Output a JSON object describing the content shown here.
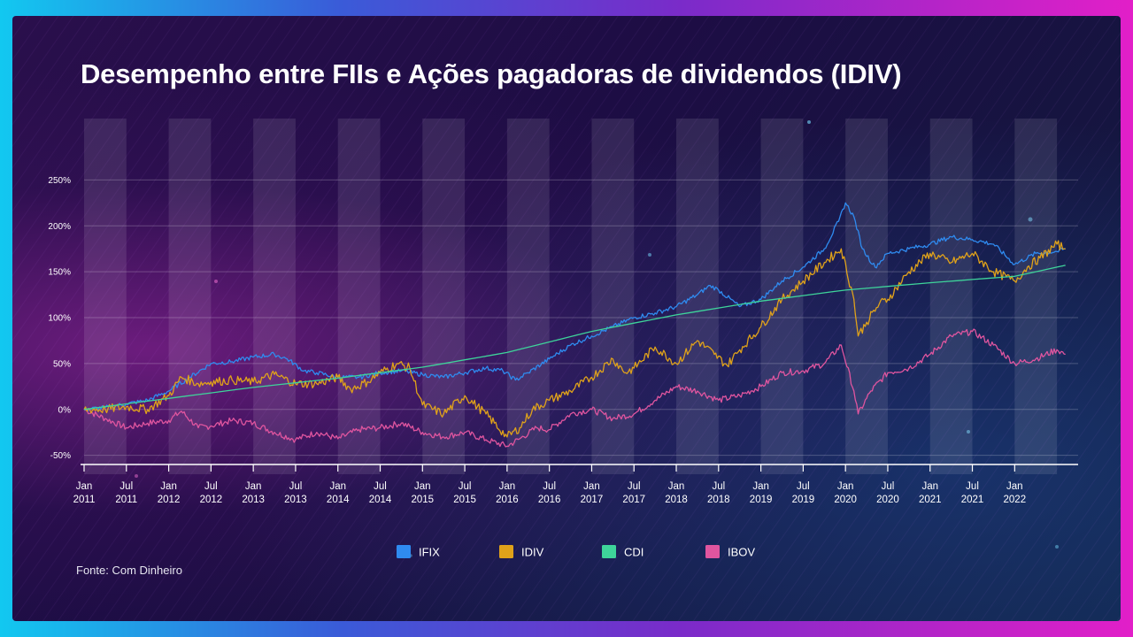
{
  "title": "Desempenho entre FIIs e Ações pagadoras de dividendos (IDIV)",
  "source": "Fonte: Com Dinheiro",
  "chart_data": {
    "type": "line",
    "title": "Desempenho entre FIIs e Ações pagadoras de dividendos (IDIV)",
    "xlabel": "",
    "ylabel": "",
    "xlim": [
      2011.0,
      2022.75
    ],
    "ylim": [
      -60,
      260
    ],
    "yticks": [
      -50,
      0,
      50,
      100,
      150,
      200,
      250
    ],
    "ytick_labels": [
      "-50%",
      "0%",
      "50%",
      "100%",
      "150%",
      "200%",
      "250%"
    ],
    "xticks": [
      {
        "x": 2011.0,
        "line1": "Jan",
        "line2": "2011"
      },
      {
        "x": 2011.5,
        "line1": "Jul",
        "line2": "2011"
      },
      {
        "x": 2012.0,
        "line1": "Jan",
        "line2": "2012"
      },
      {
        "x": 2012.5,
        "line1": "Jul",
        "line2": "2012"
      },
      {
        "x": 2013.0,
        "line1": "Jan",
        "line2": "2013"
      },
      {
        "x": 2013.5,
        "line1": "Jul",
        "line2": "2013"
      },
      {
        "x": 2014.0,
        "line1": "Jan",
        "line2": "2014"
      },
      {
        "x": 2014.5,
        "line1": "Jul",
        "line2": "2014"
      },
      {
        "x": 2015.0,
        "line1": "Jan",
        "line2": "2015"
      },
      {
        "x": 2015.5,
        "line1": "Jul",
        "line2": "2015"
      },
      {
        "x": 2016.0,
        "line1": "Jan",
        "line2": "2016"
      },
      {
        "x": 2016.5,
        "line1": "Jul",
        "line2": "2016"
      },
      {
        "x": 2017.0,
        "line1": "Jan",
        "line2": "2017"
      },
      {
        "x": 2017.5,
        "line1": "Jul",
        "line2": "2017"
      },
      {
        "x": 2018.0,
        "line1": "Jan",
        "line2": "2018"
      },
      {
        "x": 2018.5,
        "line1": "Jul",
        "line2": "2018"
      },
      {
        "x": 2019.0,
        "line1": "Jan",
        "line2": "2019"
      },
      {
        "x": 2019.5,
        "line1": "Jul",
        "line2": "2019"
      },
      {
        "x": 2020.0,
        "line1": "Jan",
        "line2": "2020"
      },
      {
        "x": 2020.5,
        "line1": "Jul",
        "line2": "2020"
      },
      {
        "x": 2021.0,
        "line1": "Jan",
        "line2": "2021"
      },
      {
        "x": 2021.5,
        "line1": "Jul",
        "line2": "2021"
      },
      {
        "x": 2022.0,
        "line1": "Jan",
        "line2": "2022"
      }
    ],
    "grid": true,
    "legend_position": "bottom",
    "series": [
      {
        "name": "IFIX",
        "color": "#2f8bf0",
        "x": [
          2011.0,
          2011.25,
          2011.5,
          2011.75,
          2012.0,
          2012.25,
          2012.5,
          2012.75,
          2013.0,
          2013.25,
          2013.4,
          2013.6,
          2013.75,
          2014.0,
          2014.25,
          2014.5,
          2014.75,
          2015.0,
          2015.25,
          2015.5,
          2015.75,
          2015.95,
          2016.1,
          2016.25,
          2016.5,
          2016.75,
          2017.0,
          2017.25,
          2017.5,
          2017.75,
          2018.0,
          2018.25,
          2018.4,
          2018.5,
          2018.75,
          2019.0,
          2019.25,
          2019.5,
          2019.75,
          2019.92,
          2020.0,
          2020.1,
          2020.2,
          2020.35,
          2020.5,
          2020.75,
          2021.0,
          2021.25,
          2021.5,
          2021.75,
          2022.0,
          2022.25,
          2022.5,
          2022.6
        ],
        "y": [
          0,
          2,
          6,
          10,
          20,
          35,
          50,
          52,
          57,
          60,
          55,
          42,
          40,
          35,
          35,
          40,
          42,
          38,
          35,
          40,
          45,
          42,
          32,
          40,
          55,
          70,
          80,
          90,
          100,
          105,
          112,
          125,
          135,
          130,
          112,
          120,
          140,
          155,
          175,
          205,
          225,
          210,
          175,
          155,
          170,
          175,
          180,
          188,
          185,
          180,
          158,
          170,
          172,
          175
        ]
      },
      {
        "name": "IDIV",
        "color": "#e0a21a",
        "x": [
          2011.0,
          2011.25,
          2011.5,
          2011.75,
          2012.0,
          2012.15,
          2012.35,
          2012.5,
          2012.75,
          2013.0,
          2013.25,
          2013.5,
          2013.75,
          2014.0,
          2014.15,
          2014.35,
          2014.5,
          2014.7,
          2014.85,
          2015.0,
          2015.25,
          2015.5,
          2015.75,
          2016.0,
          2016.15,
          2016.3,
          2016.5,
          2016.75,
          2017.0,
          2017.25,
          2017.4,
          2017.5,
          2017.75,
          2018.0,
          2018.25,
          2018.45,
          2018.6,
          2018.75,
          2019.0,
          2019.25,
          2019.5,
          2019.75,
          2019.95,
          2020.1,
          2020.15,
          2020.25,
          2020.4,
          2020.5,
          2020.75,
          2021.0,
          2021.25,
          2021.5,
          2021.75,
          2022.0,
          2022.15,
          2022.3,
          2022.5,
          2022.6
        ],
        "y": [
          0,
          0,
          3,
          0,
          15,
          35,
          28,
          30,
          32,
          30,
          38,
          28,
          28,
          35,
          22,
          30,
          40,
          50,
          45,
          5,
          -5,
          15,
          -5,
          -30,
          -20,
          0,
          10,
          20,
          35,
          55,
          40,
          45,
          68,
          50,
          75,
          60,
          48,
          65,
          90,
          120,
          140,
          160,
          175,
          120,
          80,
          95,
          115,
          120,
          150,
          170,
          160,
          170,
          150,
          140,
          155,
          165,
          180,
          175
        ]
      },
      {
        "name": "CDI",
        "color": "#3ed49a",
        "x": [
          2011.0,
          2012.0,
          2013.0,
          2014.0,
          2015.0,
          2016.0,
          2017.0,
          2018.0,
          2019.0,
          2020.0,
          2021.0,
          2022.0,
          2022.6
        ],
        "y": [
          0,
          12,
          24,
          34,
          46,
          62,
          85,
          103,
          118,
          130,
          138,
          145,
          157
        ]
      },
      {
        "name": "IBOV",
        "color": "#e0559f",
        "x": [
          2011.0,
          2011.25,
          2011.5,
          2011.75,
          2012.0,
          2012.15,
          2012.35,
          2012.5,
          2012.75,
          2013.0,
          2013.25,
          2013.5,
          2013.75,
          2014.0,
          2014.25,
          2014.5,
          2014.75,
          2015.0,
          2015.25,
          2015.5,
          2015.75,
          2016.0,
          2016.15,
          2016.35,
          2016.5,
          2016.75,
          2017.0,
          2017.25,
          2017.5,
          2017.75,
          2018.0,
          2018.25,
          2018.5,
          2018.75,
          2019.0,
          2019.25,
          2019.5,
          2019.75,
          2019.95,
          2020.1,
          2020.15,
          2020.3,
          2020.5,
          2020.75,
          2021.0,
          2021.25,
          2021.5,
          2021.75,
          2022.0,
          2022.25,
          2022.5,
          2022.6
        ],
        "y": [
          0,
          -10,
          -20,
          -15,
          -12,
          -2,
          -20,
          -18,
          -12,
          -15,
          -25,
          -33,
          -25,
          -32,
          -22,
          -20,
          -15,
          -25,
          -30,
          -25,
          -33,
          -40,
          -32,
          -20,
          -22,
          -5,
          0,
          -10,
          -5,
          10,
          25,
          20,
          10,
          15,
          25,
          40,
          42,
          50,
          70,
          20,
          -5,
          20,
          40,
          45,
          60,
          80,
          85,
          70,
          50,
          55,
          65,
          60
        ]
      }
    ]
  }
}
